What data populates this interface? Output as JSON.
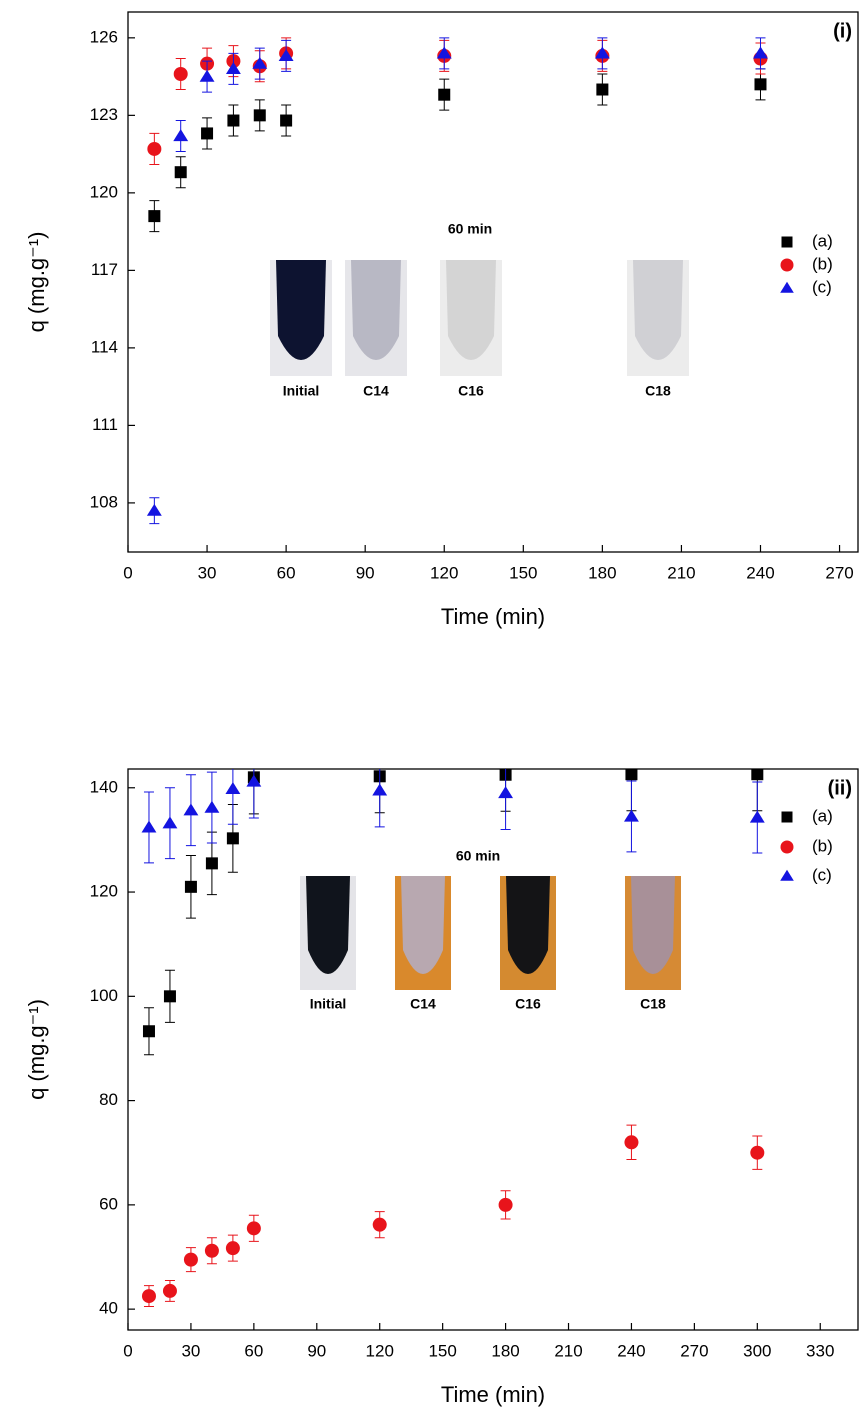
{
  "chart_data": [
    {
      "type": "scatter",
      "panel_label": "(i)",
      "x_label": "Time (min)",
      "y_label": "q (mg.g⁻¹)",
      "x": [
        10,
        20,
        30,
        40,
        50,
        60,
        120,
        180,
        240
      ],
      "series": [
        {
          "name": "(a)",
          "color": "#000000",
          "marker": "square",
          "values": [
            119.1,
            120.8,
            122.3,
            122.8,
            123.0,
            122.8,
            123.8,
            124.0,
            124.2
          ],
          "errors": [
            0.6,
            0.6,
            0.6,
            0.6,
            0.6,
            0.6,
            0.6,
            0.6,
            0.6
          ]
        },
        {
          "name": "(b)",
          "color": "#e8141b",
          "marker": "circle",
          "values": [
            121.7,
            124.6,
            125.0,
            125.1,
            124.9,
            125.4,
            125.3,
            125.3,
            125.2
          ],
          "errors": [
            0.6,
            0.6,
            0.6,
            0.6,
            0.6,
            0.6,
            0.6,
            0.6,
            0.6
          ]
        },
        {
          "name": "(c)",
          "color": "#1414e0",
          "marker": "triangle",
          "values": [
            107.7,
            122.2,
            124.5,
            124.8,
            125.0,
            125.3,
            125.4,
            125.4,
            125.4
          ],
          "errors": [
            0.5,
            0.6,
            0.6,
            0.6,
            0.6,
            0.6,
            0.6,
            0.6,
            0.6
          ]
        }
      ],
      "xlim": [
        0,
        277
      ],
      "ylim": [
        106.1,
        127
      ],
      "xticks": [
        0,
        30,
        60,
        90,
        120,
        150,
        180,
        210,
        240,
        270
      ],
      "yticks": [
        108,
        111,
        114,
        117,
        120,
        123,
        126
      ],
      "legend": "right",
      "inset": {
        "title": "60 min",
        "labels": [
          "Initial",
          "C14",
          "C16",
          "C18"
        ]
      }
    },
    {
      "type": "scatter",
      "panel_label": "(ii)",
      "x_label": "Time (min)",
      "y_label": "q (mg.g⁻¹)",
      "x": [
        10,
        20,
        30,
        40,
        50,
        60,
        120,
        180,
        240,
        300
      ],
      "series": [
        {
          "name": "(a)",
          "color": "#000000",
          "marker": "square",
          "values": [
            93.3,
            100,
            121,
            125.5,
            130.3,
            142,
            142.2,
            142.5,
            142.6,
            142.6
          ],
          "errors": [
            4.5,
            5,
            6,
            6,
            6.5,
            7,
            7,
            7,
            7,
            7
          ]
        },
        {
          "name": "(b)",
          "color": "#e8141b",
          "marker": "circle",
          "values": [
            42.5,
            43.5,
            49.5,
            51.2,
            51.7,
            55.5,
            56.2,
            60,
            72,
            70
          ],
          "errors": [
            2,
            2,
            2.3,
            2.5,
            2.5,
            2.5,
            2.5,
            2.7,
            3.3,
            3.2
          ]
        },
        {
          "name": "(c)",
          "color": "#1414e0",
          "marker": "triangle",
          "values": [
            132.4,
            133.2,
            135.7,
            136.2,
            139.8,
            141.2,
            139.5,
            139,
            134.5,
            134.3
          ],
          "errors": [
            6.8,
            6.8,
            6.8,
            6.8,
            6.8,
            7,
            7,
            7,
            6.8,
            6.8
          ]
        }
      ],
      "xlim": [
        0,
        348
      ],
      "ylim": [
        36,
        143.6
      ],
      "xticks": [
        0,
        30,
        60,
        90,
        120,
        150,
        180,
        210,
        240,
        270,
        300,
        330
      ],
      "yticks": [
        40,
        60,
        80,
        100,
        120,
        140
      ],
      "legend": "right",
      "inset": {
        "title": "60 min",
        "labels": [
          "Initial",
          "C14",
          "C16",
          "C18"
        ]
      }
    }
  ]
}
